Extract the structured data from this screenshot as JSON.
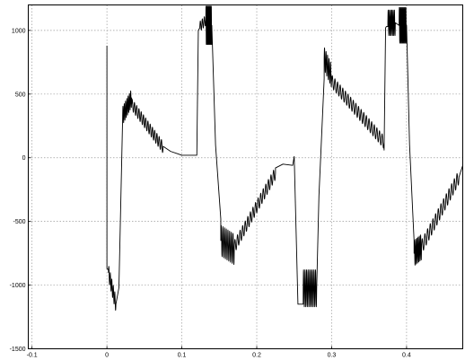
{
  "chart_data": {
    "type": "line",
    "title": "",
    "xlabel": "",
    "ylabel": "",
    "xlim": [
      -0.105,
      0.475
    ],
    "ylim": [
      -1500,
      1200
    ],
    "grid": true,
    "legend": "none",
    "line_color": "#000000",
    "xticks": [
      -0.1,
      0,
      0.1,
      0.2,
      0.3,
      0.4
    ],
    "xtick_labels": [
      "-0.1",
      "0",
      "0.1",
      "0.2",
      "0.3",
      "0.4"
    ],
    "yticks": [
      -1500,
      -1000,
      -500,
      0,
      500,
      1000
    ],
    "ytick_labels": [
      "-1500",
      "-1000",
      "-500",
      "0",
      "500",
      "1000"
    ],
    "series": [
      {
        "name": "",
        "segments": [
          {
            "kind": "line",
            "x": [
              0.0,
              0.0,
              0.002
            ],
            "y": [
              880,
              -870,
              -880
            ]
          },
          {
            "kind": "osc",
            "x0": 0.002,
            "x1": 0.012,
            "y0": -900,
            "y1": -1150,
            "amp": 60,
            "cycles": 5
          },
          {
            "kind": "line",
            "x": [
              0.012,
              0.016
            ],
            "y": [
              -1150,
              -1020
            ]
          },
          {
            "kind": "line",
            "x": [
              0.016,
              0.021
            ],
            "y": [
              -1020,
              320
            ]
          },
          {
            "kind": "osc",
            "x0": 0.021,
            "x1": 0.033,
            "y0": 330,
            "y1": 470,
            "amp": 70,
            "cycles": 7
          },
          {
            "kind": "osc",
            "x0": 0.033,
            "x1": 0.075,
            "y0": 420,
            "y1": 80,
            "amp": 45,
            "cycles": 14
          },
          {
            "kind": "line",
            "x": [
              0.075,
              0.085,
              0.095,
              0.1,
              0.1,
              0.12
            ],
            "y": [
              90,
              50,
              30,
              20,
              20,
              20
            ]
          },
          {
            "kind": "line",
            "x": [
              0.12,
              0.122,
              0.124
            ],
            "y": [
              20,
              1000,
              1020
            ]
          },
          {
            "kind": "osc",
            "x0": 0.124,
            "x1": 0.132,
            "y0": 1030,
            "y1": 1080,
            "amp": 40,
            "cycles": 3
          },
          {
            "kind": "osc",
            "x0": 0.132,
            "x1": 0.14,
            "y0": 1040,
            "y1": 1040,
            "amp": 150,
            "cycles": 9
          },
          {
            "kind": "line",
            "x": [
              0.14,
              0.145
            ],
            "y": [
              1040,
              100
            ]
          },
          {
            "kind": "line",
            "x": [
              0.145,
              0.152
            ],
            "y": [
              100,
              -480
            ]
          },
          {
            "kind": "osc",
            "x0": 0.152,
            "x1": 0.17,
            "y0": -650,
            "y1": -720,
            "amp": 120,
            "cycles": 8
          },
          {
            "kind": "osc",
            "x0": 0.17,
            "x1": 0.225,
            "y0": -700,
            "y1": -120,
            "amp": 50,
            "cycles": 16
          },
          {
            "kind": "line",
            "x": [
              0.225,
              0.235,
              0.248,
              0.25
            ],
            "y": [
              -80,
              -50,
              -60,
              10
            ]
          },
          {
            "kind": "line",
            "x": [
              0.25,
              0.255
            ],
            "y": [
              10,
              -1150
            ]
          },
          {
            "kind": "line",
            "x": [
              0.255,
              0.262
            ],
            "y": [
              -1150,
              -1150
            ]
          },
          {
            "kind": "osc",
            "x0": 0.262,
            "x1": 0.28,
            "y0": -1025,
            "y1": -1025,
            "amp": 145,
            "cycles": 9
          },
          {
            "kind": "line",
            "x": [
              0.28,
              0.283
            ],
            "y": [
              -1025,
              -300
            ]
          },
          {
            "kind": "line",
            "x": [
              0.283,
              0.29
            ],
            "y": [
              -300,
              620
            ]
          },
          {
            "kind": "osc",
            "x0": 0.29,
            "x1": 0.3,
            "y0": 780,
            "y1": 640,
            "amp": 90,
            "cycles": 5
          },
          {
            "kind": "osc",
            "x0": 0.3,
            "x1": 0.37,
            "y0": 600,
            "y1": 120,
            "amp": 50,
            "cycles": 20
          },
          {
            "kind": "line",
            "x": [
              0.37,
              0.372,
              0.373,
              0.375
            ],
            "y": [
              60,
              1020,
              1030,
              1030
            ]
          },
          {
            "kind": "osc",
            "x0": 0.375,
            "x1": 0.385,
            "y0": 1060,
            "y1": 1060,
            "amp": 100,
            "cycles": 6
          },
          {
            "kind": "line",
            "x": [
              0.385,
              0.39
            ],
            "y": [
              1060,
              1040
            ]
          },
          {
            "kind": "osc",
            "x0": 0.39,
            "x1": 0.4,
            "y0": 1040,
            "y1": 1040,
            "amp": 140,
            "cycles": 8
          },
          {
            "kind": "line",
            "x": [
              0.4,
              0.404,
              0.41
            ],
            "y": [
              1040,
              100,
              -650
            ]
          },
          {
            "kind": "osc",
            "x0": 0.41,
            "x1": 0.42,
            "y0": -750,
            "y1": -700,
            "amp": 100,
            "cycles": 6
          },
          {
            "kind": "osc",
            "x0": 0.42,
            "x1": 0.47,
            "y0": -700,
            "y1": -150,
            "amp": 55,
            "cycles": 14
          },
          {
            "kind": "line",
            "x": [
              0.47,
              0.475
            ],
            "y": [
              -150,
              -60
            ]
          }
        ]
      }
    ]
  }
}
